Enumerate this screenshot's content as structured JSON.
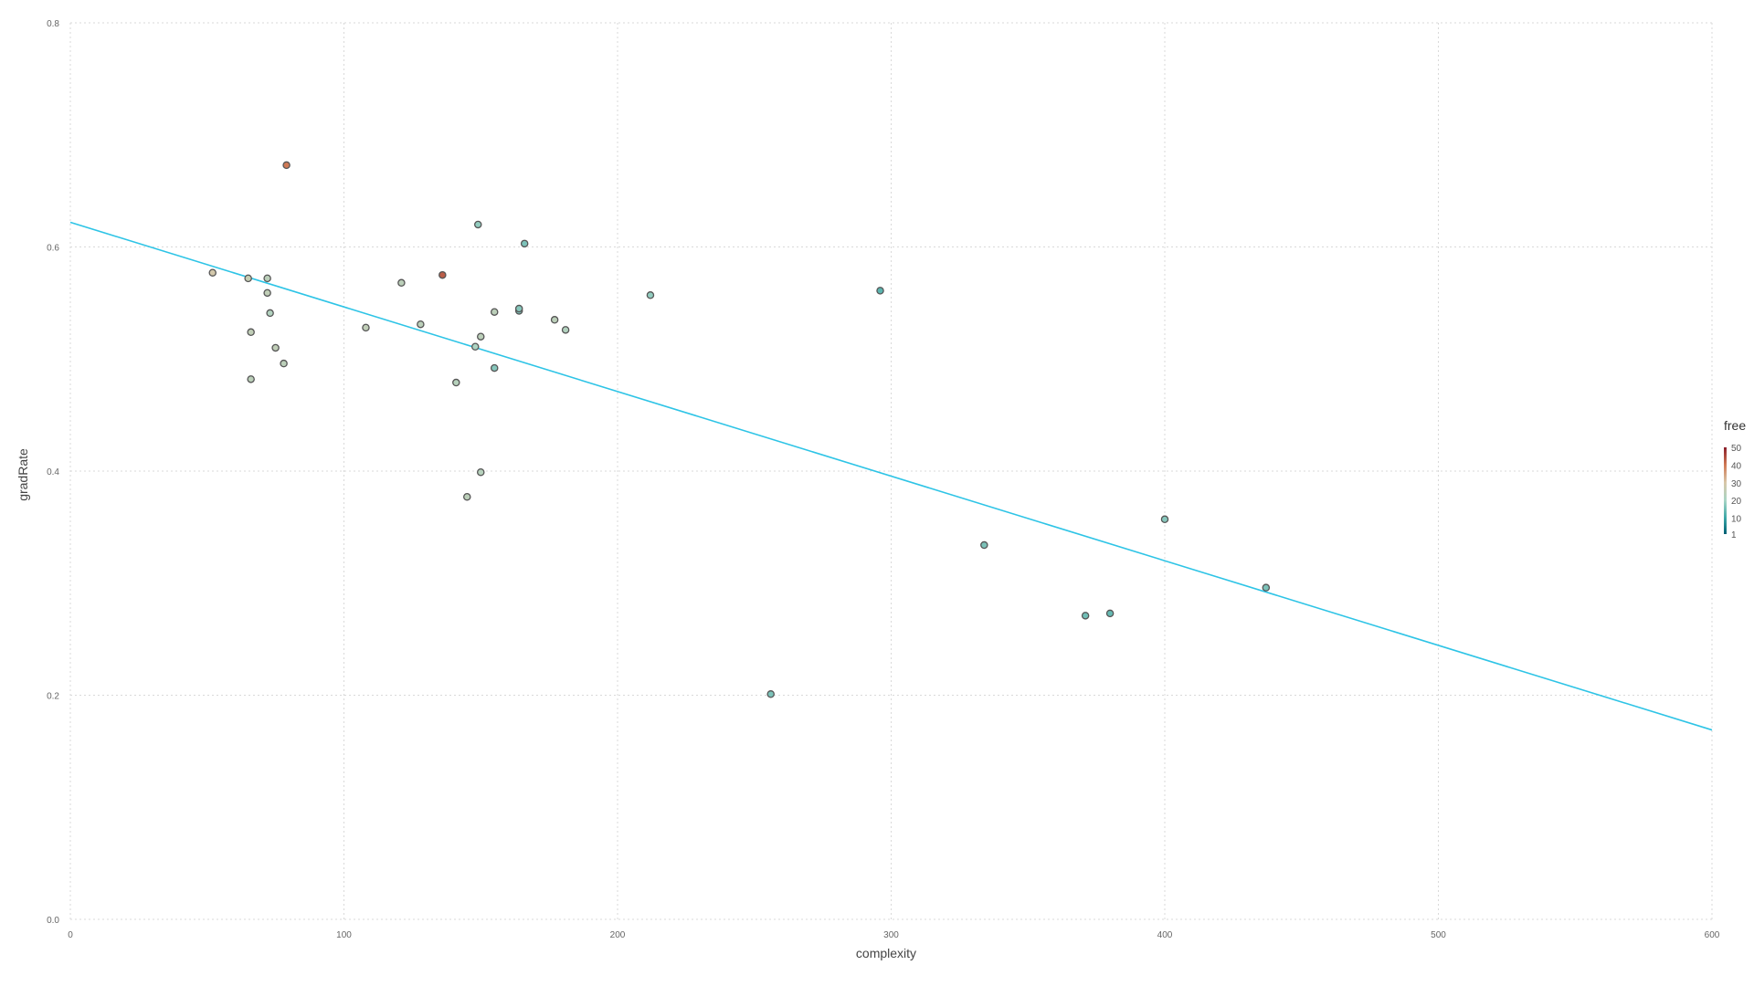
{
  "chart_data": {
    "type": "scatter",
    "title": "",
    "xlabel": "complexity",
    "ylabel": "gradRate",
    "xlim": [
      0,
      600
    ],
    "ylim": [
      0,
      0.8
    ],
    "x_ticks": [
      0,
      100,
      200,
      300,
      400,
      500,
      600
    ],
    "y_ticks": [
      0.0,
      0.2,
      0.4,
      0.6,
      0.8
    ],
    "x_tick_labels": [
      "0",
      "100",
      "200",
      "300",
      "400",
      "500",
      "600"
    ],
    "y_tick_labels": [
      "0.0",
      "0.2",
      "0.4",
      "0.6",
      "0.8"
    ],
    "grid": true,
    "legend": {
      "title": "free",
      "position": "right",
      "labels": [
        "50",
        "40",
        "30",
        "20",
        "10",
        "1"
      ],
      "values": [
        50,
        40,
        30,
        20,
        10,
        1
      ],
      "min": 1,
      "max": 50
    },
    "color_scale": {
      "stops": [
        {
          "value": 1,
          "color": "#005f73"
        },
        {
          "value": 10,
          "color": "#3aa6a6"
        },
        {
          "value": 20,
          "color": "#a8d5c5"
        },
        {
          "value": 30,
          "color": "#d8c7a8"
        },
        {
          "value": 40,
          "color": "#d07a55"
        },
        {
          "value": 50,
          "color": "#8b1e2a"
        }
      ]
    },
    "fit_line": {
      "color": "#2ec4e6",
      "x": [
        0,
        600
      ],
      "y": [
        0.622,
        0.169
      ]
    },
    "points": [
      {
        "x": 52,
        "y": 0.577,
        "free": 29
      },
      {
        "x": 65,
        "y": 0.572,
        "free": 26
      },
      {
        "x": 72,
        "y": 0.572,
        "free": 24
      },
      {
        "x": 72,
        "y": 0.559,
        "free": 25
      },
      {
        "x": 73,
        "y": 0.541,
        "free": 22
      },
      {
        "x": 66,
        "y": 0.524,
        "free": 25
      },
      {
        "x": 75,
        "y": 0.51,
        "free": 25
      },
      {
        "x": 78,
        "y": 0.496,
        "free": 24
      },
      {
        "x": 66,
        "y": 0.482,
        "free": 24
      },
      {
        "x": 79,
        "y": 0.673,
        "free": 40
      },
      {
        "x": 108,
        "y": 0.528,
        "free": 25
      },
      {
        "x": 121,
        "y": 0.568,
        "free": 24
      },
      {
        "x": 128,
        "y": 0.531,
        "free": 24
      },
      {
        "x": 136,
        "y": 0.575,
        "free": 43
      },
      {
        "x": 141,
        "y": 0.479,
        "free": 23
      },
      {
        "x": 145,
        "y": 0.377,
        "free": 24
      },
      {
        "x": 148,
        "y": 0.511,
        "free": 21
      },
      {
        "x": 149,
        "y": 0.62,
        "free": 18
      },
      {
        "x": 150,
        "y": 0.52,
        "free": 24
      },
      {
        "x": 150,
        "y": 0.399,
        "free": 23
      },
      {
        "x": 155,
        "y": 0.542,
        "free": 24
      },
      {
        "x": 155,
        "y": 0.492,
        "free": 17
      },
      {
        "x": 164,
        "y": 0.543,
        "free": 16
      },
      {
        "x": 164,
        "y": 0.545,
        "free": 17
      },
      {
        "x": 166,
        "y": 0.603,
        "free": 16
      },
      {
        "x": 177,
        "y": 0.535,
        "free": 24
      },
      {
        "x": 181,
        "y": 0.526,
        "free": 22
      },
      {
        "x": 212,
        "y": 0.557,
        "free": 18
      },
      {
        "x": 256,
        "y": 0.201,
        "free": 16
      },
      {
        "x": 296,
        "y": 0.561,
        "free": 13
      },
      {
        "x": 334,
        "y": 0.334,
        "free": 16
      },
      {
        "x": 371,
        "y": 0.271,
        "free": 15
      },
      {
        "x": 380,
        "y": 0.273,
        "free": 14
      },
      {
        "x": 400,
        "y": 0.357,
        "free": 17
      },
      {
        "x": 437,
        "y": 0.296,
        "free": 16
      }
    ]
  }
}
